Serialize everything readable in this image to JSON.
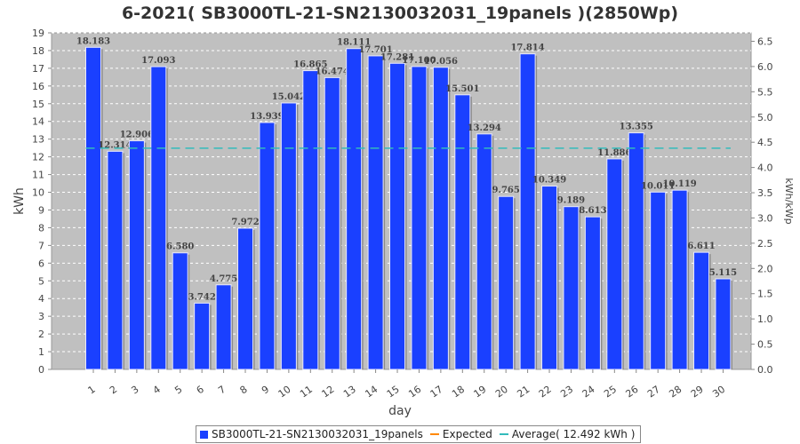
{
  "chart_data": {
    "type": "bar",
    "title": "6-2021( SB3000TL-21-SN2130032031_19panels )(2850Wp)",
    "xlabel": "day",
    "ylabel": "kWh",
    "y2label": "kWh/kWp",
    "categories": [
      "1",
      "2",
      "3",
      "4",
      "5",
      "6",
      "7",
      "8",
      "9",
      "10",
      "11",
      "12",
      "13",
      "14",
      "15",
      "16",
      "17",
      "18",
      "19",
      "20",
      "21",
      "22",
      "23",
      "24",
      "25",
      "26",
      "27",
      "28",
      "29",
      "30"
    ],
    "series": [
      {
        "name": "SB3000TL-21-SN2130032031_19panels",
        "color": "#1a40ff",
        "values": [
          18.183,
          12.314,
          12.906,
          17.093,
          6.58,
          3.742,
          4.775,
          7.972,
          13.939,
          15.042,
          16.865,
          16.474,
          18.111,
          17.701,
          17.281,
          17.1,
          17.056,
          15.501,
          13.294,
          9.765,
          17.814,
          10.349,
          9.189,
          8.613,
          11.886,
          13.355,
          10.011,
          10.119,
          6.611,
          5.115
        ],
        "labels": [
          "18.183",
          "12.314",
          "12.906",
          "17.093",
          "6.580",
          "3.742",
          "4.775",
          "7.972",
          "13.939",
          "15.042",
          "16.865",
          "16.474",
          "18.111",
          "17.701",
          "17.281",
          "17.100",
          "17.056",
          "15.501",
          "13.294",
          "9.765",
          "17.814",
          "10.349",
          "9.189",
          "8.613",
          "11.886",
          "13.355",
          "10.011",
          "10.119",
          "6.611",
          "5.115"
        ]
      }
    ],
    "average": {
      "value": 12.492,
      "color": "#33bbbb"
    },
    "expected": {
      "color": "#ff8800"
    },
    "ylim": [
      0,
      19
    ],
    "yticks": [
      "0",
      "1",
      "2",
      "3",
      "4",
      "5",
      "6",
      "7",
      "8",
      "9",
      "10",
      "11",
      "12",
      "13",
      "14",
      "15",
      "16",
      "17",
      "18",
      "19"
    ],
    "y2lim": [
      0,
      6.667
    ],
    "y2ticks": [
      "0.0",
      "0.5",
      "1.0",
      "1.5",
      "2.0",
      "2.5",
      "3.0",
      "3.5",
      "4.0",
      "4.5",
      "5.0",
      "5.5",
      "6.0",
      "6.5"
    ],
    "grid": true,
    "legend_position": "bottom",
    "plot_background": "#c0c0c0"
  },
  "legend": {
    "series_label": "SB3000TL-21-SN2130032031_19panels",
    "expected_label": "Expected",
    "average_label": "Average( 12.492 kWh )"
  }
}
